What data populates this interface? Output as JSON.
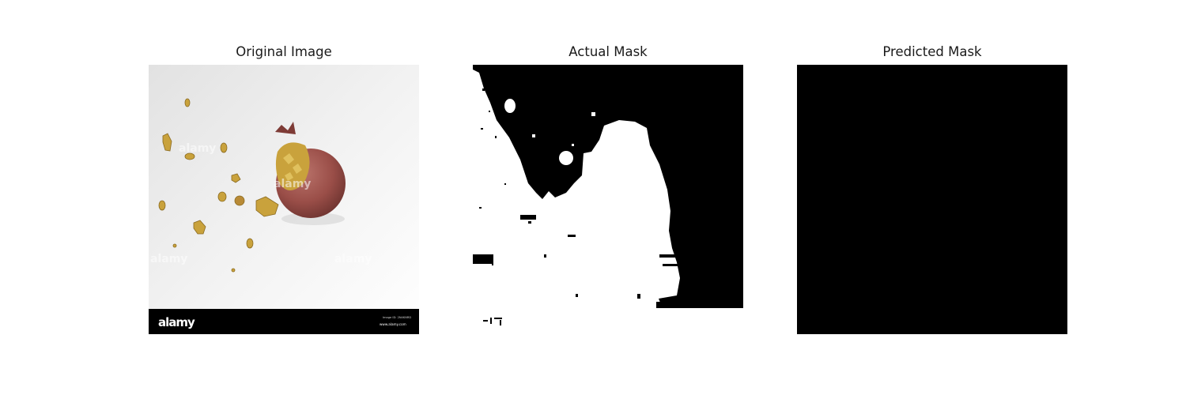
{
  "figure": {
    "panels": [
      {
        "title": "Original Image"
      },
      {
        "title": "Actual Mask"
      },
      {
        "title": "Predicted Mask"
      }
    ],
    "original_image": {
      "watermark_brand": "alamy",
      "watermark_small_1": "Image ID: 2N4KNRD",
      "watermark_small_2": "www.alamy.com",
      "colors": {
        "background": "#e9e9e9",
        "fruit": "#9a4e48",
        "seeds": "#c9a23c",
        "banner": "#000000"
      }
    },
    "actual_mask": {
      "colors": {
        "foreground": "#ffffff",
        "background": "#000000"
      }
    },
    "predicted_mask": {
      "colors": {
        "fill": "#000000"
      }
    }
  }
}
